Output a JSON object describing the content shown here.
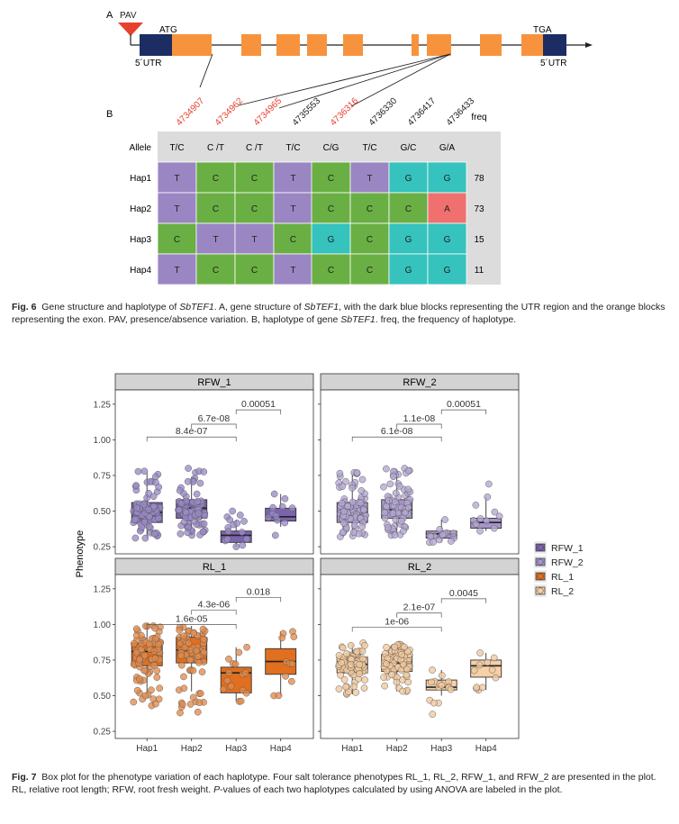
{
  "fig6": {
    "panel_a_label": "A",
    "panel_b_label": "B",
    "gene": {
      "pav_label": "PAV",
      "atg_label": "ATG",
      "tga_label": "TGA",
      "utr5_label": "5´UTR",
      "utr3_label": "5´UTR",
      "utr_color": "#1c2d63",
      "exon_color": "#f7933d"
    },
    "table": {
      "positions": [
        {
          "label": "4734907",
          "color": "#e8402f"
        },
        {
          "label": "4734962",
          "color": "#e8402f"
        },
        {
          "label": "4734965",
          "color": "#e8402f"
        },
        {
          "label": "4735553",
          "color": "#222222"
        },
        {
          "label": "4736316",
          "color": "#e8402f"
        },
        {
          "label": "4736330",
          "color": "#222222"
        },
        {
          "label": "4736417",
          "color": "#222222"
        },
        {
          "label": "4736433",
          "color": "#222222"
        }
      ],
      "freq_header": "freq",
      "allele_label": "Allele",
      "alleles": [
        "T/C",
        "C /T",
        "C /T",
        "T/C",
        "C/G",
        "T/C",
        "G/C",
        "G/A"
      ],
      "rows": [
        {
          "name": "Hap1",
          "cells": [
            "T",
            "C",
            "C",
            "T",
            "C",
            "T",
            "G",
            "G"
          ],
          "freq": "78"
        },
        {
          "name": "Hap2",
          "cells": [
            "T",
            "C",
            "C",
            "T",
            "C",
            "C",
            "C",
            "A"
          ],
          "freq": "73"
        },
        {
          "name": "Hap3",
          "cells": [
            "C",
            "T",
            "T",
            "C",
            "G",
            "C",
            "G",
            "G"
          ],
          "freq": "15"
        },
        {
          "name": "Hap4",
          "cells": [
            "T",
            "C",
            "C",
            "T",
            "C",
            "C",
            "G",
            "G"
          ],
          "freq": "11"
        }
      ],
      "colors": {
        "T": "#9a86c2",
        "C": "#6aaf44",
        "G": "#36c2bd",
        "A": "#f07070",
        "header_bg": "#dcdcdc"
      }
    },
    "caption": {
      "label": "Fig. 6",
      "t1": "Gene structure and haplotype of",
      "gene": "SbTEF1",
      "t2": ". A, gene structure of",
      "t3": ", with the dark blue blocks representing the UTR region and the orange blocks representing the exon. PAV, presence/absence variation. B, haplotype of gene",
      "t4": ". freq, the frequency of haplotype."
    }
  },
  "fig7": {
    "caption": {
      "label": "Fig. 7",
      "t1": "Box plot for the phenotype variation of each haplotype. Four salt tolerance phenotypes RL_1, RL_2, RFW_1, and RFW_2 are presented in the plot. RL, relative root length; RFW, root fresh weight.",
      "p": "P",
      "t2": "-values of each two haplotypes calculated by using ANOVA are labeled in the plot."
    }
  },
  "chart_data": {
    "type": "box",
    "ylabel": "Phenotype",
    "categories": [
      "Hap1",
      "Hap2",
      "Hap3",
      "Hap4"
    ],
    "legend": [
      {
        "name": "RFW_1",
        "color": "#7b64ad"
      },
      {
        "name": "RFW_2",
        "color": "#a596c8"
      },
      {
        "name": "RL_1",
        "color": "#e06f1f"
      },
      {
        "name": "RL_2",
        "color": "#f6d0a8"
      }
    ],
    "panels": [
      {
        "title": "RFW_1",
        "color": "#7b64ad",
        "point_color": "#9a8bc6",
        "ylim": [
          0.2,
          1.35
        ],
        "yticks": [
          "1.25",
          "1.00",
          "0.75",
          "0.50",
          "0.25"
        ],
        "ytick_values": [
          1.25,
          1.0,
          0.75,
          0.5,
          0.25
        ],
        "boxes": [
          {
            "cat": "Hap1",
            "q1": 0.42,
            "median": 0.49,
            "q3": 0.56,
            "whisker_low": 0.31,
            "whisker_high": 0.77
          },
          {
            "cat": "Hap2",
            "q1": 0.45,
            "median": 0.52,
            "q3": 0.58,
            "whisker_low": 0.33,
            "whisker_high": 0.74
          },
          {
            "cat": "Hap3",
            "q1": 0.28,
            "median": 0.33,
            "q3": 0.36,
            "whisker_low": 0.25,
            "whisker_high": 0.44
          },
          {
            "cat": "Hap4",
            "q1": 0.43,
            "median": 0.46,
            "q3": 0.52,
            "whisker_low": 0.39,
            "whisker_high": 0.62
          }
        ],
        "points": [
          {
            "cat": "Hap1",
            "n": 78,
            "min": 0.31,
            "max": 0.78
          },
          {
            "cat": "Hap2",
            "n": 73,
            "min": 0.33,
            "max": 0.8
          },
          {
            "cat": "Hap3",
            "n": 15,
            "min": 0.25,
            "max": 0.5
          },
          {
            "cat": "Hap4",
            "n": 11,
            "min": 0.33,
            "max": 0.62
          }
        ],
        "pvalues": [
          {
            "from": "Hap1",
            "to": "Hap3",
            "y": 1.02,
            "label": "8.4e-07"
          },
          {
            "from": "Hap2",
            "to": "Hap3",
            "y": 1.11,
            "label": "6.7e-08"
          },
          {
            "from": "Hap3",
            "to": "Hap4",
            "y": 1.21,
            "label": "0.00051"
          }
        ]
      },
      {
        "title": "RFW_2",
        "color": "#a596c8",
        "point_color": "#b3a6d4",
        "ylim": [
          0.2,
          1.35
        ],
        "yticks": [],
        "ytick_values": [
          1.25,
          1.0,
          0.75,
          0.5,
          0.25
        ],
        "boxes": [
          {
            "cat": "Hap1",
            "q1": 0.42,
            "median": 0.49,
            "q3": 0.56,
            "whisker_low": 0.32,
            "whisker_high": 0.76
          },
          {
            "cat": "Hap2",
            "q1": 0.45,
            "median": 0.51,
            "q3": 0.58,
            "whisker_low": 0.33,
            "whisker_high": 0.74
          },
          {
            "cat": "Hap3",
            "q1": 0.31,
            "median": 0.34,
            "q3": 0.36,
            "whisker_low": 0.28,
            "whisker_high": 0.44
          },
          {
            "cat": "Hap4",
            "q1": 0.38,
            "median": 0.42,
            "q3": 0.45,
            "whisker_low": 0.36,
            "whisker_high": 0.6
          }
        ],
        "points": [
          {
            "cat": "Hap1",
            "n": 78,
            "min": 0.32,
            "max": 0.77
          },
          {
            "cat": "Hap2",
            "n": 73,
            "min": 0.33,
            "max": 0.8
          },
          {
            "cat": "Hap3",
            "n": 15,
            "min": 0.28,
            "max": 0.44
          },
          {
            "cat": "Hap4",
            "n": 11,
            "min": 0.36,
            "max": 0.69
          }
        ],
        "pvalues": [
          {
            "from": "Hap1",
            "to": "Hap3",
            "y": 1.02,
            "label": "6.1e-08"
          },
          {
            "from": "Hap2",
            "to": "Hap3",
            "y": 1.11,
            "label": "1.1e-08"
          },
          {
            "from": "Hap3",
            "to": "Hap4",
            "y": 1.21,
            "label": "0.00051"
          }
        ]
      },
      {
        "title": "RL_1",
        "color": "#e06f1f",
        "point_color": "#e38a4a",
        "ylim": [
          0.2,
          1.35
        ],
        "yticks": [
          "1.25",
          "1.00",
          "0.75",
          "0.50",
          "0.25"
        ],
        "ytick_values": [
          1.25,
          1.0,
          0.75,
          0.5,
          0.25
        ],
        "boxes": [
          {
            "cat": "Hap1",
            "q1": 0.71,
            "median": 0.81,
            "q3": 0.87,
            "whisker_low": 0.52,
            "whisker_high": 0.98
          },
          {
            "cat": "Hap2",
            "q1": 0.73,
            "median": 0.82,
            "q3": 0.91,
            "whisker_low": 0.53,
            "whisker_high": 0.99
          },
          {
            "cat": "Hap3",
            "q1": 0.52,
            "median": 0.66,
            "q3": 0.7,
            "whisker_low": 0.46,
            "whisker_high": 0.84
          },
          {
            "cat": "Hap4",
            "q1": 0.65,
            "median": 0.74,
            "q3": 0.83,
            "whisker_low": 0.5,
            "whisker_high": 0.95
          }
        ],
        "points": [
          {
            "cat": "Hap1",
            "n": 78,
            "min": 0.43,
            "max": 0.99
          },
          {
            "cat": "Hap2",
            "n": 73,
            "min": 0.38,
            "max": 0.98
          },
          {
            "cat": "Hap3",
            "n": 15,
            "min": 0.46,
            "max": 0.84
          },
          {
            "cat": "Hap4",
            "n": 11,
            "min": 0.5,
            "max": 0.95
          }
        ],
        "pvalues": [
          {
            "from": "Hap1",
            "to": "Hap3",
            "y": 1.0,
            "label": "1.6e-05"
          },
          {
            "from": "Hap2",
            "to": "Hap3",
            "y": 1.1,
            "label": "4.3e-06"
          },
          {
            "from": "Hap3",
            "to": "Hap4",
            "y": 1.19,
            "label": "0.018"
          }
        ]
      },
      {
        "title": "RL_2",
        "color": "#f6d0a8",
        "point_color": "#f1c89c",
        "ylim": [
          0.2,
          1.35
        ],
        "yticks": [],
        "ytick_values": [
          1.25,
          1.0,
          0.75,
          0.5,
          0.25
        ],
        "boxes": [
          {
            "cat": "Hap1",
            "q1": 0.66,
            "median": 0.72,
            "q3": 0.77,
            "whisker_low": 0.51,
            "whisker_high": 0.86
          },
          {
            "cat": "Hap2",
            "q1": 0.67,
            "median": 0.73,
            "q3": 0.79,
            "whisker_low": 0.53,
            "whisker_high": 0.86
          },
          {
            "cat": "Hap3",
            "q1": 0.54,
            "median": 0.56,
            "q3": 0.61,
            "whisker_low": 0.5,
            "whisker_high": 0.68
          },
          {
            "cat": "Hap4",
            "q1": 0.63,
            "median": 0.71,
            "q3": 0.75,
            "whisker_low": 0.54,
            "whisker_high": 0.8
          }
        ],
        "points": [
          {
            "cat": "Hap1",
            "n": 78,
            "min": 0.51,
            "max": 0.87
          },
          {
            "cat": "Hap2",
            "n": 73,
            "min": 0.53,
            "max": 0.86
          },
          {
            "cat": "Hap3",
            "n": 15,
            "min": 0.37,
            "max": 0.68
          },
          {
            "cat": "Hap4",
            "n": 11,
            "min": 0.54,
            "max": 0.8
          }
        ],
        "pvalues": [
          {
            "from": "Hap1",
            "to": "Hap3",
            "y": 0.98,
            "label": "1e-06"
          },
          {
            "from": "Hap2",
            "to": "Hap3",
            "y": 1.08,
            "label": "2.1e-07"
          },
          {
            "from": "Hap3",
            "to": "Hap4",
            "y": 1.18,
            "label": "0.0045"
          }
        ]
      }
    ]
  }
}
